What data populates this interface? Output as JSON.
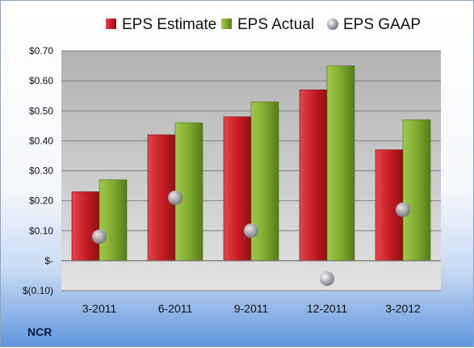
{
  "chart_data": {
    "type": "bar",
    "title": "",
    "xlabel": "",
    "ylabel": "",
    "categories": [
      "3-2011",
      "6-2011",
      "9-2011",
      "12-2011",
      "3-2012"
    ],
    "series": [
      {
        "name": "EPS Estimate",
        "kind": "bar",
        "color": "#c81e24",
        "values": [
          0.23,
          0.42,
          0.48,
          0.57,
          0.37
        ]
      },
      {
        "name": "EPS Actual",
        "kind": "bar",
        "color": "#7faa2e",
        "values": [
          0.27,
          0.46,
          0.53,
          0.65,
          0.47
        ]
      },
      {
        "name": "EPS GAAP",
        "kind": "scatter",
        "color": "#a8a8b4",
        "values": [
          0.08,
          0.21,
          0.1,
          -0.06,
          0.17
        ]
      }
    ],
    "ylim": [
      -0.1,
      0.7
    ],
    "yticks": [
      -0.1,
      0.0,
      0.1,
      0.2,
      0.3,
      0.4,
      0.5,
      0.6,
      0.7
    ],
    "ytick_labels": [
      "$(0.10)",
      "$-",
      "$0.10",
      "$0.20",
      "$0.30",
      "$0.40",
      "$0.50",
      "$0.60",
      "$0.70"
    ],
    "grid": true,
    "legend": "top"
  },
  "footer": {
    "brand": "NCR"
  }
}
